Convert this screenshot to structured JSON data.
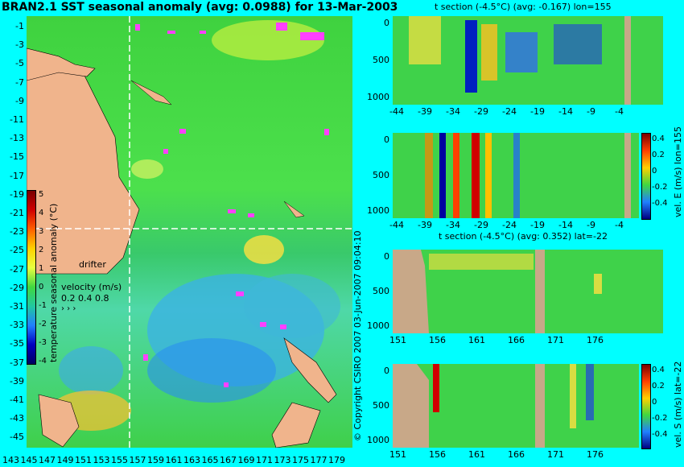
{
  "map": {
    "title": "BRAN2.1 SST seasonal anomaly (avg: 0.0988) for 13-Mar-2003",
    "lat_labels": [
      "-1",
      "-3",
      "-5",
      "-7",
      "-9",
      "-11",
      "-13",
      "-15",
      "-17",
      "-19",
      "-21",
      "-23",
      "-25",
      "-27",
      "-29",
      "-31",
      "-33",
      "-35",
      "-37",
      "-39",
      "-41",
      "-43",
      "-45"
    ],
    "lon_labels": [
      "143",
      "145",
      "147",
      "149",
      "151",
      "153",
      "155",
      "157",
      "159",
      "161",
      "163",
      "165",
      "167",
      "169",
      "171",
      "173",
      "175",
      "177",
      "179"
    ],
    "colorbar": {
      "ticks": [
        "5",
        "4",
        "3",
        "2",
        "1",
        "0",
        "-1",
        "-2",
        "-3",
        "-4"
      ],
      "label": "temperature seasonal anomaly (°C)",
      "colors": [
        "#7a0000",
        "#d00000",
        "#ff6000",
        "#ffd000",
        "#e8ff40",
        "#40d840",
        "#20c8a0",
        "#2080ff",
        "#0000c0",
        "#000060"
      ]
    },
    "drifter_label": "drifter",
    "velocity_label": "velocity (m/s)",
    "velocity_scale": "0.2 0.4 0.8",
    "copyright": "© Copyright CSIRO 2007   03-Jun-2007 09:04:10"
  },
  "sections": [
    {
      "title": "t section (-4.5°C) (avg: -0.167) lon=155",
      "y_ticks": [
        "0",
        "500",
        "1000"
      ],
      "x_ticks": [
        "-44",
        "-39",
        "-34",
        "-29",
        "-24",
        "-19",
        "-14",
        "-9",
        "-4"
      ]
    },
    {
      "title": "",
      "y_ticks": [
        "0",
        "500",
        "1000"
      ],
      "x_ticks": [
        "-44",
        "-39",
        "-34",
        "-29",
        "-24",
        "-19",
        "-14",
        "-9",
        "-4"
      ],
      "colorbar_ticks": [
        "0.4",
        "0.2",
        "0",
        "-0.2",
        "-0.4"
      ],
      "colorbar_label": "vel. E (m/s) lon=155"
    },
    {
      "title": "t section (-4.5°C) (avg: 0.352) lat=-22",
      "y_ticks": [
        "0",
        "500",
        "1000"
      ],
      "x_ticks": [
        "151",
        "156",
        "161",
        "166",
        "171",
        "176"
      ]
    },
    {
      "title": "",
      "y_ticks": [
        "0",
        "500",
        "1000"
      ],
      "x_ticks": [
        "151",
        "156",
        "161",
        "166",
        "171",
        "176"
      ],
      "colorbar_ticks": [
        "0.4",
        "0.2",
        "0",
        "-0.2",
        "-0.4"
      ],
      "colorbar_label": "vel. S (m/s) lat=-22"
    }
  ]
}
